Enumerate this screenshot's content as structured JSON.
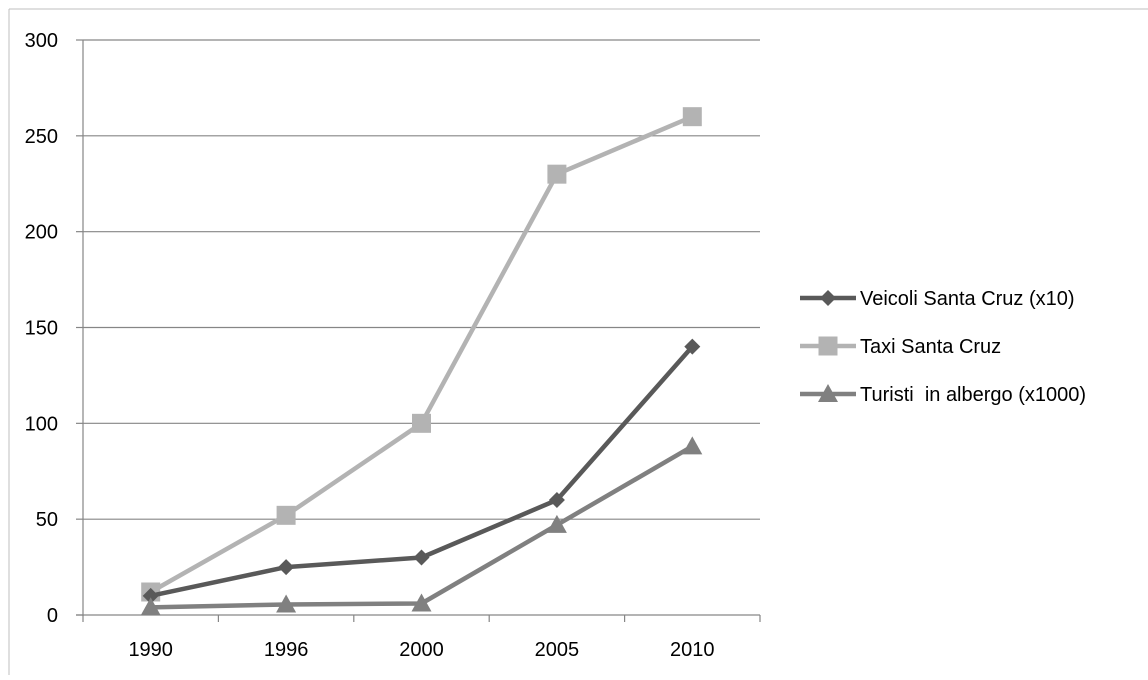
{
  "chart_data": {
    "type": "line",
    "categories": [
      "1990",
      "1996",
      "2000",
      "2005",
      "2010"
    ],
    "series": [
      {
        "name": "Veicoli Santa Cruz (x10)",
        "values": [
          10,
          25,
          30,
          60,
          140
        ],
        "marker": "diamond",
        "color": "#595959"
      },
      {
        "name": "Taxi Santa Cruz",
        "values": [
          12,
          52,
          100,
          230,
          260
        ],
        "marker": "square",
        "color": "#b3b3b3"
      },
      {
        "name": "Turisti  in albergo (x1000)",
        "values": [
          4,
          5.5,
          6,
          47,
          88
        ],
        "marker": "triangle",
        "color": "#808080"
      }
    ],
    "ylim": [
      0,
      300
    ],
    "yticks": [
      0,
      50,
      100,
      150,
      200,
      250,
      300
    ],
    "grid": true,
    "legend_position": "right",
    "gridline_color": "#868686",
    "axis_color": "#868686",
    "border_color": "#bfbfbf"
  }
}
